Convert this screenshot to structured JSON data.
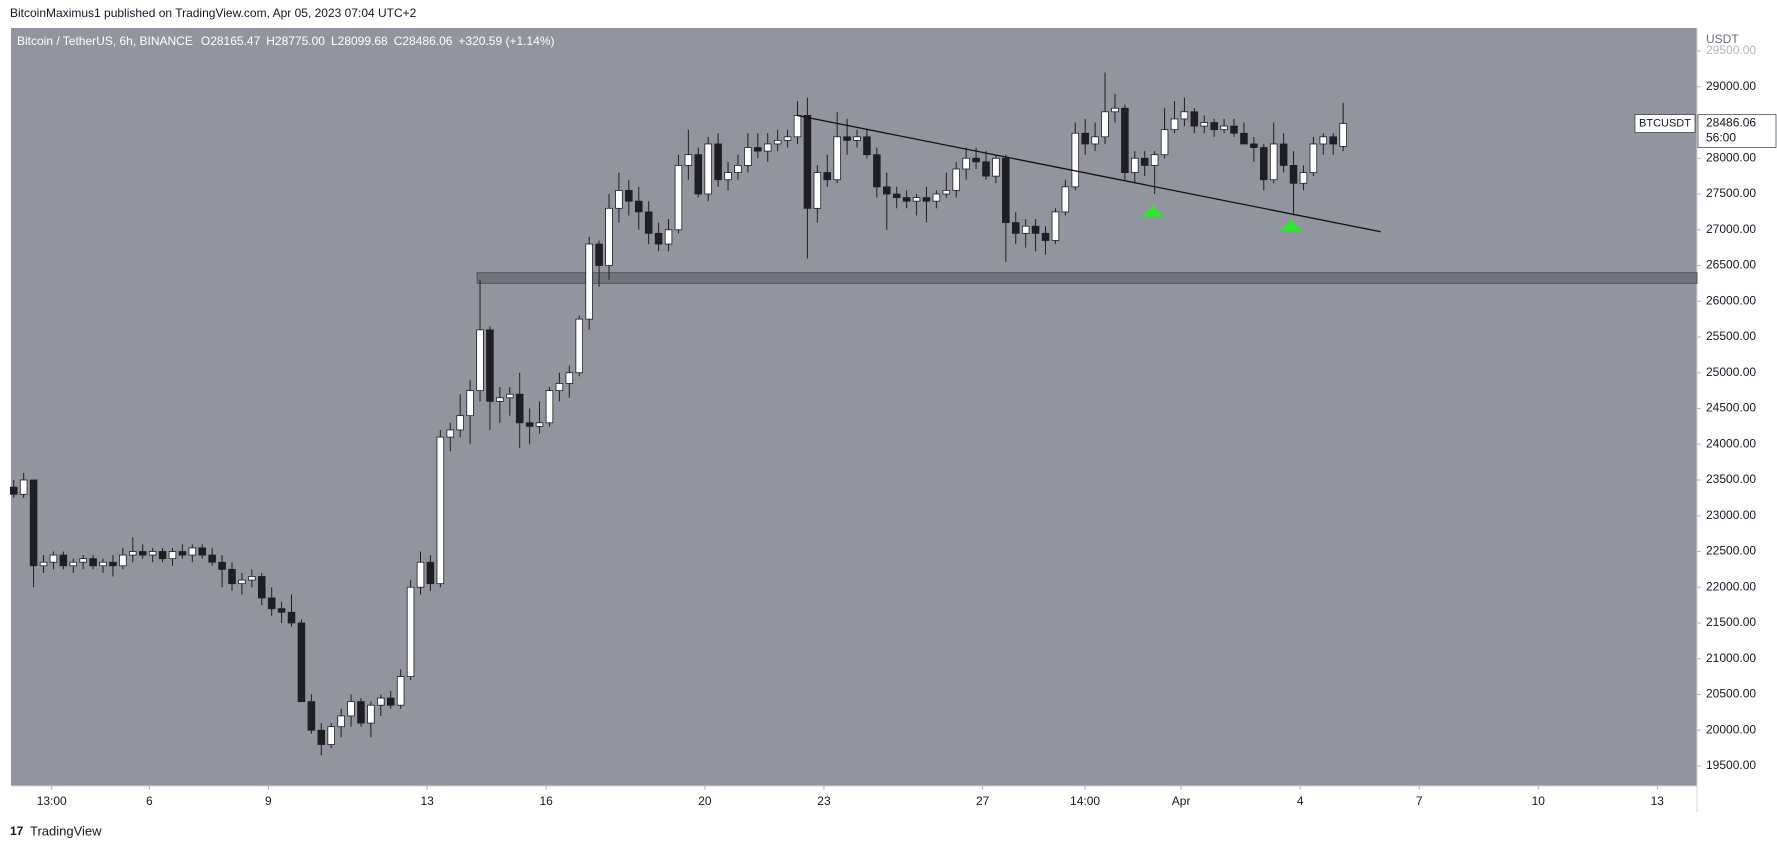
{
  "chart_data": {
    "type": "candlestick",
    "header": "BitcoinMaximus1 published on TradingView.com, Apr 05, 2023 07:04 UTC+2",
    "title": "Bitcoin / TetherUS, 6h, BINANCE",
    "legend_values": [
      "O28165.47",
      "H28775.00",
      "L28099.68",
      "C28486.06",
      "+320.59 (+1.14%)"
    ],
    "axis_unit": "USDT",
    "symbol": "BTCUSDT",
    "countdown": "56:00",
    "footer": "TradingView",
    "up_color": "#ffffff",
    "down_color": "#1e1e24",
    "background": "#93959e",
    "x": [
      2.583,
      2.833,
      3.083,
      3.333,
      3.583,
      3.833,
      4.083,
      4.333,
      4.583,
      4.833,
      5.083,
      5.333,
      5.583,
      5.833,
      6.083,
      6.333,
      6.583,
      6.833,
      7.083,
      7.333,
      7.583,
      7.833,
      8.083,
      8.333,
      8.583,
      8.833,
      9.083,
      9.333,
      9.583,
      9.833,
      10.083,
      10.333,
      10.583,
      10.833,
      11.083,
      11.333,
      11.583,
      11.833,
      12.083,
      12.333,
      12.583,
      12.833,
      13.083,
      13.333,
      13.583,
      13.833,
      14.083,
      14.333,
      14.583,
      14.833,
      15.083,
      15.333,
      15.583,
      15.833,
      16.083,
      16.333,
      16.583,
      16.833,
      17.083,
      17.333,
      17.583,
      17.833,
      18.083,
      18.333,
      18.583,
      18.833,
      19.083,
      19.333,
      19.583,
      19.833,
      20.083,
      20.333,
      20.583,
      20.833,
      21.083,
      21.333,
      21.583,
      21.833,
      22.083,
      22.333,
      22.583,
      22.833,
      23.083,
      23.333,
      23.583,
      23.833,
      24.083,
      24.333,
      24.583,
      24.833,
      25.083,
      25.333,
      25.583,
      25.833,
      26.083,
      26.333,
      26.583,
      26.833,
      27.083,
      27.333,
      27.583,
      27.833,
      28.083,
      28.333,
      28.583,
      28.833,
      29.083,
      29.333,
      29.583,
      29.833,
      30.083,
      30.333,
      30.583,
      30.833,
      31.083,
      31.333,
      31.583,
      31.833,
      32.083,
      32.333,
      32.583,
      32.833,
      33.083,
      33.333,
      33.583,
      33.833,
      34.083,
      34.333,
      34.583,
      34.833,
      35.083,
      35.333,
      35.583,
      35.833,
      36.083
    ],
    "open": [
      23400,
      23300,
      23500,
      22300,
      22350,
      22450,
      22300,
      22350,
      22400,
      22300,
      22350,
      22300,
      22450,
      22500,
      22450,
      22500,
      22400,
      22500,
      22450,
      22550,
      22450,
      22350,
      22250,
      22050,
      22100,
      22150,
      21850,
      21700,
      21650,
      21500,
      20400,
      20000,
      19800,
      20050,
      20200,
      20400,
      20100,
      20350,
      20450,
      20350,
      20750,
      22000,
      22350,
      22050,
      24100,
      24200,
      24400,
      24750,
      25600,
      24600,
      24650,
      24700,
      24300,
      24250,
      24300,
      24750,
      24850,
      25000,
      25750,
      26800,
      26500,
      27300,
      27550,
      27400,
      27250,
      26950,
      26800,
      27000,
      27900,
      28050,
      27500,
      28200,
      27700,
      27800,
      27900,
      28150,
      28100,
      28200,
      28250,
      28300,
      28600,
      27300,
      27800,
      27700,
      28300,
      28250,
      28300,
      28050,
      27600,
      27500,
      27450,
      27400,
      27450,
      27400,
      27500,
      27550,
      27850,
      28000,
      27950,
      27750,
      28000,
      27100,
      26950,
      27050,
      26950,
      26850,
      27250,
      27600,
      28350,
      28200,
      28300,
      28650,
      28700,
      27800,
      28000,
      27900,
      28050,
      28400,
      28550,
      28650,
      28450,
      28500,
      28400,
      28450,
      28350,
      28200,
      28150,
      27700,
      28200,
      27900,
      27650,
      27800,
      28200,
      28300,
      28165.47
    ],
    "high": [
      23500,
      23600,
      23500,
      22450,
      22500,
      22500,
      22400,
      22450,
      22450,
      22400,
      22450,
      22550,
      22700,
      22600,
      22550,
      22550,
      22550,
      22600,
      22600,
      22600,
      22550,
      22450,
      22350,
      22200,
      22250,
      22200,
      22000,
      21800,
      21900,
      21550,
      20500,
      20100,
      20100,
      20300,
      20500,
      20450,
      20400,
      20500,
      20550,
      20850,
      22100,
      22500,
      22450,
      24200,
      24300,
      24700,
      24900,
      26300,
      25650,
      24800,
      24800,
      25000,
      24500,
      24600,
      24800,
      25000,
      25100,
      25800,
      26900,
      26850,
      27500,
      27800,
      27700,
      27600,
      27400,
      27100,
      27150,
      28050,
      28400,
      28150,
      28300,
      28350,
      27950,
      28050,
      28350,
      28350,
      28350,
      28400,
      28400,
      28800,
      28850,
      27900,
      28050,
      28650,
      28550,
      28400,
      28400,
      28150,
      27800,
      27600,
      27550,
      27500,
      27600,
      27550,
      27800,
      27950,
      28150,
      28150,
      28100,
      28050,
      28050,
      27250,
      27150,
      27150,
      27050,
      27300,
      27700,
      28500,
      28550,
      28500,
      29200,
      28900,
      28750,
      28100,
      28100,
      28100,
      28700,
      28800,
      28850,
      28700,
      28600,
      28550,
      28550,
      28550,
      28500,
      28300,
      28200,
      28500,
      28350,
      28100,
      27900,
      28300,
      28350,
      28350,
      28775
    ],
    "low": [
      23250,
      23250,
      22000,
      22200,
      22250,
      22250,
      22200,
      22250,
      22250,
      22200,
      22150,
      22250,
      22350,
      22400,
      22350,
      22350,
      22300,
      22400,
      22350,
      22400,
      22300,
      22000,
      21950,
      21900,
      22000,
      21750,
      21600,
      21500,
      21450,
      20400,
      19950,
      19650,
      19750,
      19900,
      20050,
      20050,
      19900,
      20200,
      20300,
      20300,
      20700,
      21900,
      21950,
      22000,
      23900,
      24100,
      24000,
      24600,
      24200,
      24300,
      24400,
      23950,
      24000,
      24150,
      24250,
      24600,
      24650,
      24950,
      25600,
      26200,
      26300,
      27100,
      27200,
      27000,
      26800,
      26700,
      26700,
      26950,
      27700,
      27450,
      27400,
      27600,
      27550,
      27700,
      27800,
      28000,
      27950,
      28100,
      28150,
      28200,
      26600,
      27100,
      27600,
      27650,
      28050,
      28150,
      28000,
      27450,
      27000,
      27300,
      27300,
      27200,
      27100,
      27300,
      27450,
      27450,
      27700,
      27850,
      27700,
      27650,
      26550,
      26800,
      26750,
      26700,
      26650,
      26800,
      27200,
      27550,
      28050,
      28100,
      28200,
      28500,
      27700,
      27650,
      27750,
      27500,
      28000,
      28350,
      28450,
      28350,
      28350,
      28300,
      28350,
      28300,
      28250,
      27950,
      27550,
      27650,
      27800,
      27200,
      27550,
      27750,
      28050,
      28050,
      28099.68
    ],
    "close": [
      23300,
      23500,
      22300,
      22350,
      22450,
      22300,
      22350,
      22400,
      22300,
      22350,
      22300,
      22450,
      22500,
      22450,
      22500,
      22400,
      22500,
      22450,
      22550,
      22450,
      22350,
      22250,
      22050,
      22100,
      22150,
      21850,
      21700,
      21650,
      21500,
      20400,
      20000,
      19800,
      20050,
      20200,
      20400,
      20100,
      20350,
      20450,
      20350,
      20750,
      22000,
      22350,
      22050,
      24100,
      24200,
      24400,
      24750,
      25600,
      24600,
      24650,
      24700,
      24300,
      24250,
      24300,
      24750,
      24850,
      25000,
      25750,
      26800,
      26500,
      27300,
      27550,
      27400,
      27250,
      26950,
      26800,
      27000,
      27900,
      28050,
      27500,
      28200,
      27700,
      27800,
      27900,
      28150,
      28100,
      28200,
      28250,
      28300,
      28600,
      27300,
      27800,
      27700,
      28300,
      28250,
      28300,
      28050,
      27600,
      27500,
      27450,
      27400,
      27450,
      27400,
      27500,
      27550,
      27850,
      28000,
      27950,
      27750,
      28000,
      27100,
      26950,
      27050,
      26950,
      26850,
      27250,
      27600,
      28350,
      28200,
      28300,
      28650,
      28700,
      27800,
      28000,
      27900,
      28050,
      28400,
      28550,
      28650,
      28450,
      28500,
      28400,
      28450,
      28350,
      28200,
      28150,
      27700,
      28200,
      27900,
      27650,
      27800,
      28200,
      28300,
      28200,
      28486.06
    ],
    "xlim": [
      2.514,
      45.0
    ],
    "xticks": [
      {
        "value": 3.54,
        "label": "13:00"
      },
      6,
      9,
      13,
      16,
      20,
      23,
      27,
      {
        "value": 29.58,
        "label": "14:00"
      },
      {
        "value": 32,
        "label": "Apr"
      },
      {
        "value": 35,
        "label": "4"
      },
      {
        "value": 38,
        "label": "7"
      },
      {
        "value": 41,
        "label": "10"
      },
      {
        "value": 44,
        "label": "13"
      }
    ],
    "ylim": [
      19220,
      29822
    ],
    "yticks": [
      {
        "value": 19500,
        "label": "19500.00"
      },
      {
        "value": 20000,
        "label": "20000.00"
      },
      {
        "value": 20500,
        "label": "20500.00"
      },
      {
        "value": 21000,
        "label": "21000.00"
      },
      {
        "value": 21500,
        "label": "21500.00"
      },
      {
        "value": 22000,
        "label": "22000.00"
      },
      {
        "value": 22500,
        "label": "22500.00"
      },
      {
        "value": 23000,
        "label": "23000.00"
      },
      {
        "value": 23500,
        "label": "23500.00"
      },
      {
        "value": 24000,
        "label": "24000.00"
      },
      {
        "value": 24500,
        "label": "24500.00"
      },
      {
        "value": 25000,
        "label": "25000.00"
      },
      {
        "value": 25500,
        "label": "25500.00"
      },
      {
        "value": 26000,
        "label": "26000.00"
      },
      {
        "value": 26500,
        "label": "26500.00"
      },
      {
        "value": 27000,
        "label": "27000.00"
      },
      {
        "value": 27500,
        "label": "27500.00"
      },
      {
        "value": 28000,
        "label": "28000.00"
      },
      {
        "value": 28500,
        "label": "28500.00"
      },
      {
        "value": 29000,
        "label": "29000.00"
      },
      {
        "value": 29500,
        "label": "29500.00"
      }
    ],
    "trendline": {
      "x": [
        22.314,
        37.03
      ],
      "y": [
        28600,
        26972
      ],
      "color": "#111111"
    },
    "support_zone": {
      "x": [
        14.26,
        45.0
      ],
      "y": [
        26250,
        26400
      ],
      "color": "#6e7079"
    },
    "markers": {
      "x": [
        31.29,
        34.77
      ],
      "y": [
        27350,
        27150
      ],
      "color": "#2ee62e"
    }
  }
}
